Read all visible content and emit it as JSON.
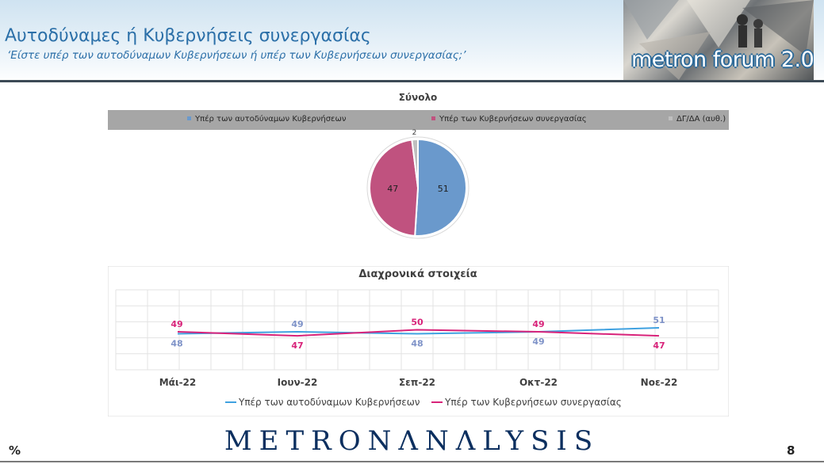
{
  "header": {
    "title": "Αυτοδύναμες ή Κυβερνήσεις συνεργασίας",
    "subtitle": "‘Είστε υπέρ των αυτοδύναμων Κυβερνήσεων ή υπέρ των Κυβερνήσεων συνεργασίας;’",
    "logo_text": "metron forum 2.0"
  },
  "footer": {
    "brand": "METRONΛNΛLYSIS",
    "unit": "%",
    "page": "8"
  },
  "colors": {
    "blue": "#6a99cc",
    "pink": "#c0527f",
    "gray": "#bfbfbf",
    "line_blue": "#3fa1e0",
    "line_pink": "#d8237a"
  },
  "chart_data": [
    {
      "type": "pie",
      "title": "Σύνολο",
      "legend_position": "top",
      "labels": [
        "Υπέρ των αυτοδύναμων Κυβερνήσεων",
        "Υπέρ των Κυβερνήσεων συνεργασίας",
        "ΔΓ/ΔΑ (αυθ.)"
      ],
      "values": [
        51,
        47,
        2
      ]
    },
    {
      "type": "line",
      "title": "Διαχρονικά στοιχεία",
      "categories": [
        "Μάι-22",
        "Ιουν-22",
        "Σεπ-22",
        "Οκτ-22",
        "Νοε-22"
      ],
      "ylim": [
        30,
        70
      ],
      "grid": true,
      "legend_position": "bottom",
      "series": [
        {
          "name": "Υπέρ των αυτοδύναμων Κυβερνήσεων",
          "values": [
            48,
            49,
            48,
            49,
            51
          ]
        },
        {
          "name": "Υπέρ των Κυβερνήσεων συνεργασίας",
          "values": [
            49,
            47,
            50,
            49,
            47
          ]
        }
      ]
    }
  ]
}
